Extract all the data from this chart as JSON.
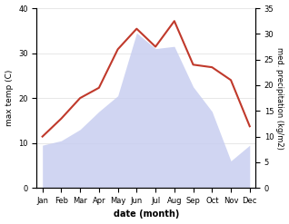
{
  "months": [
    "Jan",
    "Feb",
    "Mar",
    "Apr",
    "May",
    "Jun",
    "Jul",
    "Aug",
    "Sep",
    "Oct",
    "Nov",
    "Dec"
  ],
  "month_positions": [
    0,
    1,
    2,
    3,
    4,
    5,
    6,
    7,
    8,
    9,
    10,
    11
  ],
  "temp_max": [
    9.5,
    10.5,
    13.0,
    17.0,
    20.5,
    34.5,
    31.0,
    31.5,
    22.5,
    17.0,
    6.0,
    9.5
  ],
  "precip": [
    10.0,
    13.5,
    17.5,
    19.5,
    27.0,
    31.0,
    27.5,
    32.5,
    24.0,
    23.5,
    21.0,
    12.0
  ],
  "temp_color": "#c0392b",
  "temp_fill_color": "#c8cef0",
  "temp_fill_alpha": 0.85,
  "temp_ylim": [
    0,
    40
  ],
  "precip_ylim": [
    0,
    35
  ],
  "temp_yticks": [
    0,
    10,
    20,
    30,
    40
  ],
  "precip_yticks": [
    0,
    5,
    10,
    15,
    20,
    25,
    30,
    35
  ],
  "ylabel_left": "max temp (C)",
  "ylabel_right": "med. precipitation (kg/m2)",
  "xlabel": "date (month)",
  "bg_color": "#f5f5f5",
  "fig_width": 3.18,
  "fig_height": 2.47,
  "dpi": 100
}
